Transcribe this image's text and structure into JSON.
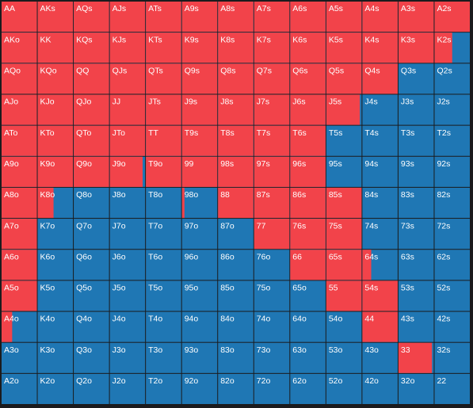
{
  "grid": {
    "rows": [
      [
        "AA",
        "AKs",
        "AQs",
        "AJs",
        "ATs",
        "A9s",
        "A8s",
        "A7s",
        "A6s",
        "A5s",
        "A4s",
        "A3s",
        "A2s"
      ],
      [
        "AKo",
        "KK",
        "KQs",
        "KJs",
        "KTs",
        "K9s",
        "K8s",
        "K7s",
        "K6s",
        "K5s",
        "K4s",
        "K3s",
        "K2s"
      ],
      [
        "AQo",
        "KQo",
        "QQ",
        "QJs",
        "QTs",
        "Q9s",
        "Q8s",
        "Q7s",
        "Q6s",
        "Q5s",
        "Q4s",
        "Q3s",
        "Q2s"
      ],
      [
        "AJo",
        "KJo",
        "QJo",
        "JJ",
        "JTs",
        "J9s",
        "J8s",
        "J7s",
        "J6s",
        "J5s",
        "J4s",
        "J3s",
        "J2s"
      ],
      [
        "ATo",
        "KTo",
        "QTo",
        "JTo",
        "TT",
        "T9s",
        "T8s",
        "T7s",
        "T6s",
        "T5s",
        "T4s",
        "T3s",
        "T2s"
      ],
      [
        "A9o",
        "K9o",
        "Q9o",
        "J9o",
        "T9o",
        "99",
        "98s",
        "97s",
        "96s",
        "95s",
        "94s",
        "93s",
        "92s"
      ],
      [
        "A8o",
        "K8o",
        "Q8o",
        "J8o",
        "T8o",
        "98o",
        "88",
        "87s",
        "86s",
        "85s",
        "84s",
        "83s",
        "82s"
      ],
      [
        "A7o",
        "K7o",
        "Q7o",
        "J7o",
        "T7o",
        "97o",
        "87o",
        "77",
        "76s",
        "75s",
        "74s",
        "73s",
        "72s"
      ],
      [
        "A6o",
        "K6o",
        "Q6o",
        "J6o",
        "T6o",
        "96o",
        "86o",
        "76o",
        "66",
        "65s",
        "64s",
        "63s",
        "62s"
      ],
      [
        "A5o",
        "K5o",
        "Q5o",
        "J5o",
        "T5o",
        "95o",
        "85o",
        "75o",
        "65o",
        "55",
        "54s",
        "53s",
        "52s"
      ],
      [
        "A4o",
        "K4o",
        "Q4o",
        "J4o",
        "T4o",
        "94o",
        "84o",
        "74o",
        "64o",
        "54o",
        "44",
        "43s",
        "42s"
      ],
      [
        "A3o",
        "K3o",
        "Q3o",
        "J3o",
        "T3o",
        "93o",
        "83o",
        "73o",
        "63o",
        "53o",
        "43o",
        "33",
        "32s"
      ],
      [
        "A2o",
        "K2o",
        "Q2o",
        "J2o",
        "T2o",
        "92o",
        "82o",
        "72o",
        "62o",
        "52o",
        "42o",
        "32o",
        "22"
      ]
    ],
    "red": [
      [
        100,
        100,
        100,
        100,
        100,
        100,
        100,
        100,
        100,
        100,
        100,
        100,
        100
      ],
      [
        100,
        100,
        100,
        100,
        100,
        100,
        100,
        100,
        100,
        100,
        100,
        100,
        50
      ],
      [
        100,
        100,
        100,
        100,
        100,
        100,
        100,
        100,
        100,
        100,
        100,
        0,
        0
      ],
      [
        100,
        100,
        100,
        100,
        100,
        100,
        100,
        100,
        100,
        95,
        0,
        0,
        0
      ],
      [
        100,
        100,
        100,
        100,
        100,
        100,
        100,
        100,
        100,
        0,
        0,
        0,
        0
      ],
      [
        100,
        100,
        100,
        93,
        100,
        100,
        100,
        100,
        100,
        0,
        0,
        0,
        0
      ],
      [
        100,
        45,
        0,
        0,
        0,
        7,
        100,
        100,
        100,
        100,
        0,
        0,
        0
      ],
      [
        100,
        0,
        0,
        0,
        0,
        0,
        0,
        100,
        100,
        100,
        0,
        0,
        0
      ],
      [
        100,
        0,
        0,
        0,
        0,
        0,
        0,
        0,
        100,
        100,
        25,
        0,
        0
      ],
      [
        100,
        0,
        0,
        0,
        0,
        0,
        0,
        0,
        0,
        100,
        100,
        0,
        0
      ],
      [
        30,
        0,
        0,
        0,
        0,
        0,
        0,
        0,
        0,
        0,
        100,
        0,
        0
      ],
      [
        0,
        0,
        0,
        0,
        0,
        0,
        0,
        0,
        0,
        0,
        0,
        95,
        0
      ],
      [
        0,
        0,
        0,
        0,
        0,
        0,
        0,
        0,
        0,
        0,
        0,
        0,
        0
      ]
    ]
  }
}
